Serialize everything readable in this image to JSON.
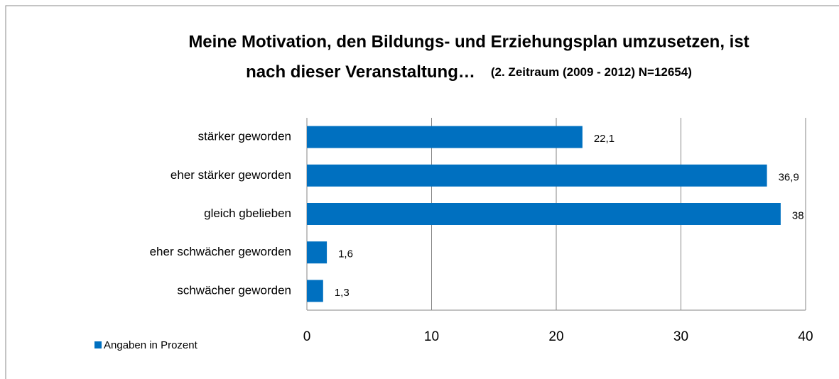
{
  "chart_data": {
    "type": "hbar",
    "title": [
      "Meine Motivation, den Bildungs- und Erziehungsplan umzusetzen, ist",
      "nach dieser Veranstaltung…"
    ],
    "subtitle": "(2. Zeitraum (2009 - 2012) N=12654)",
    "categories": [
      "stärker geworden",
      "eher stärker geworden",
      "gleich gbelieben",
      "eher schwächer geworden",
      "schwächer geworden"
    ],
    "series": [
      {
        "name": "Angaben in Prozent",
        "color": "#0070c0",
        "values": [
          22.1,
          36.9,
          38,
          1.6,
          1.3
        ],
        "value_labels": [
          "22,1",
          "36,9",
          "38",
          "1,6",
          "1,3"
        ]
      }
    ],
    "xlim": [
      0,
      40
    ],
    "xticks": [
      0,
      10,
      20,
      30,
      40
    ],
    "grid": true,
    "legend": "bottom-left"
  }
}
